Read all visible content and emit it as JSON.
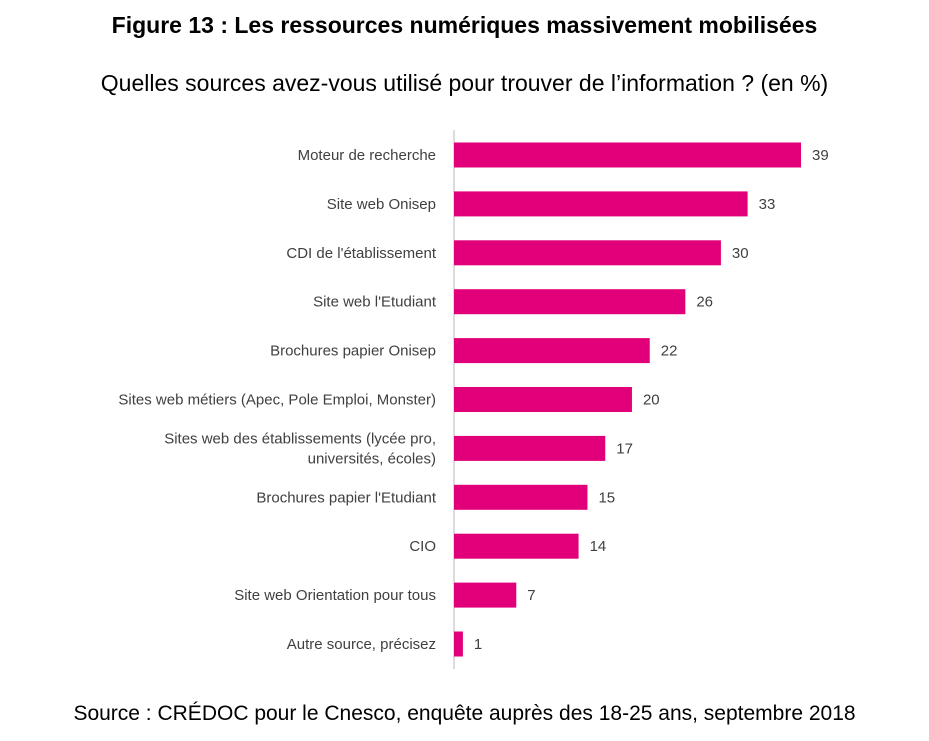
{
  "figure_title": "Figure 13 : Les ressources numériques massivement mobilisées",
  "chart_data": {
    "type": "bar",
    "orientation": "horizontal",
    "title": "Quelles sources avez-vous utilisé pour trouver de l’information ? (en %)",
    "categories": [
      [
        "Moteur de recherche"
      ],
      [
        "Site web Onisep"
      ],
      [
        "CDI de l'établissement"
      ],
      [
        "Site web l'Etudiant"
      ],
      [
        "Brochures papier Onisep"
      ],
      [
        "Sites web métiers (Apec, Pole Emploi, Monster)"
      ],
      [
        "Sites web des établissements (lycée pro,",
        "universités, écoles)"
      ],
      [
        "Brochures papier l'Etudiant"
      ],
      [
        "CIO"
      ],
      [
        "Site web Orientation pour tous"
      ],
      [
        "Autre source, précisez"
      ]
    ],
    "values": [
      39,
      33,
      30,
      26,
      22,
      20,
      17,
      15,
      14,
      7,
      1
    ],
    "xlim": [
      0,
      39
    ],
    "grid": false,
    "legend": "none",
    "bar_color": "#E2007A",
    "axis_color": "#D0D0D0",
    "label_color": "#404040"
  },
  "source": "Source : CRÉDOC pour le Cnesco, enquête auprès des 18-25 ans, septembre 2018"
}
